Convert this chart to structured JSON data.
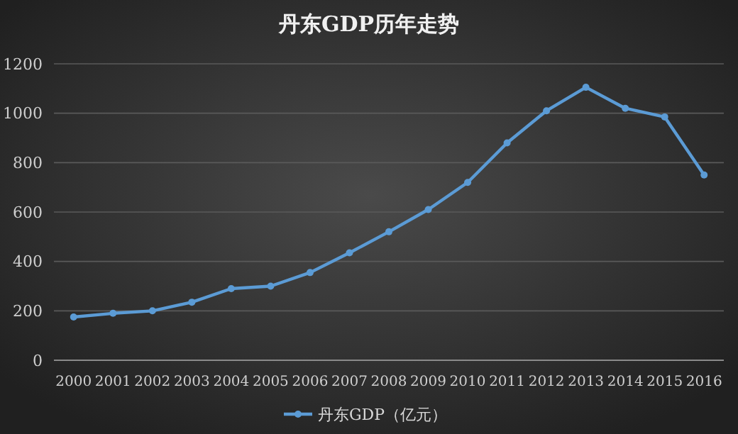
{
  "chart_data": {
    "type": "line",
    "title": "丹东GDP历年走势",
    "categories": [
      "2000",
      "2001",
      "2002",
      "2003",
      "2004",
      "2005",
      "2006",
      "2007",
      "2008",
      "2009",
      "2010",
      "2011",
      "2012",
      "2013",
      "2014",
      "2015",
      "2016"
    ],
    "series": [
      {
        "name": "丹东GDP（亿元）",
        "color": "#5b9bd5",
        "values": [
          175,
          190,
          200,
          235,
          290,
          300,
          355,
          435,
          520,
          610,
          720,
          880,
          1010,
          1105,
          1020,
          985,
          750
        ]
      }
    ],
    "ylim": [
      0,
      1200
    ],
    "yticks": [
      0,
      200,
      400,
      600,
      800,
      1000,
      1200
    ],
    "grid": "y",
    "legend": "bottom",
    "marker": "circle",
    "line_style": "solid"
  }
}
